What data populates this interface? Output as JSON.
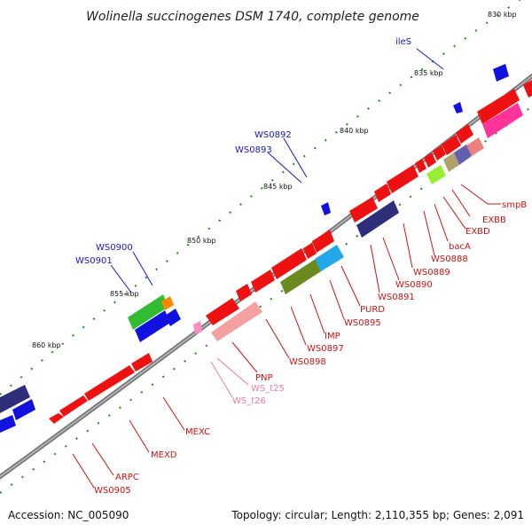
{
  "title": "Wolinella succinogenes DSM 1740, complete genome",
  "footer": {
    "accession": "Accession: NC_005090",
    "topology": "Topology: circular; Length: 2,110,355 bp; Genes: 2,091"
  },
  "ticks": [
    "830 kbp",
    "835 kbp",
    "840 kbp",
    "845 kbp",
    "850 kbp",
    "855 kbp",
    "860 kbp"
  ],
  "labels": {
    "ileS": "ileS",
    "ws0892": "WS0892",
    "ws0893": "WS0893",
    "ws0900": "WS0900",
    "ws0901": "WS0901",
    "smpB": "smpB",
    "exbb": "EXBB",
    "exbd": "EXBD",
    "baca": "bacA",
    "ws0888": "WS0888",
    "ws0889": "WS0889",
    "ws0890": "WS0890",
    "ws0891": "WS0891",
    "purd": "PURD",
    "ws0895": "WS0895",
    "imp": "IMP",
    "ws0897": "WS0897",
    "ws0898": "WS0898",
    "pnp": "PNP",
    "ws_t25": "WS_t25",
    "ws_t26": "WS_t26",
    "mexc": "MEXC",
    "mexd": "MEXD",
    "arpc": "ARPC",
    "ws0905": "WS0905"
  },
  "colors": {
    "blue_label": "#1515c8",
    "red_label": "#d01010",
    "pink_label": "#e87aa8",
    "tick_green": "#1d8a1d",
    "backbone": "#7a7a7a",
    "cds_red": "#ee1111",
    "cds_blue": "#1212e0"
  }
}
